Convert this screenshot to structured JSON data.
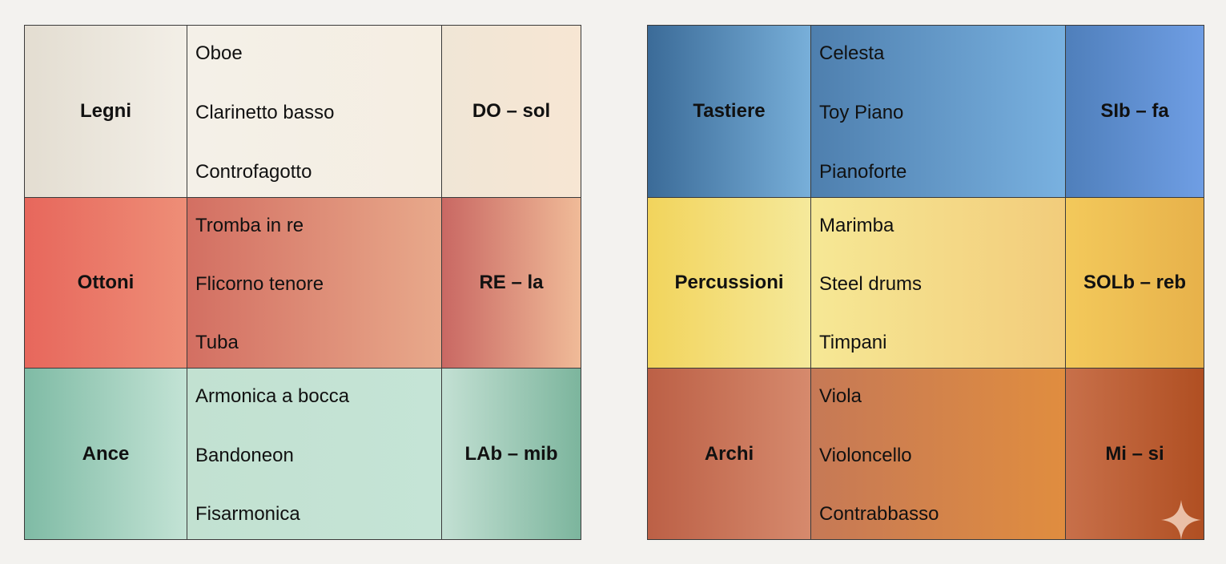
{
  "tables": [
    {
      "rows": [
        {
          "family": "Legni",
          "instruments": [
            "Oboe",
            "Clarinetto basso",
            "Controfagotto"
          ],
          "range": "DO – sol"
        },
        {
          "family": "Ottoni",
          "instruments": [
            "Tromba in re",
            "Flicorno tenore",
            "Tuba"
          ],
          "range": "RE – la"
        },
        {
          "family": "Ance",
          "instruments": [
            "Armonica a bocca",
            "Bandoneon",
            "Fisarmonica"
          ],
          "range": "LAb – mib"
        }
      ]
    },
    {
      "rows": [
        {
          "family": "Tastiere",
          "instruments": [
            "Celesta",
            "Toy Piano",
            "Pianoforte"
          ],
          "range": "SIb – fa"
        },
        {
          "family": "Percussioni",
          "instruments": [
            "Marimba",
            "Steel drums",
            "Timpani"
          ],
          "range": "SOLb – reb"
        },
        {
          "family": "Archi",
          "instruments": [
            "Viola",
            "Violoncello",
            "Contrabbasso"
          ],
          "range": "Mi – si"
        }
      ]
    }
  ],
  "icons": {
    "corner": "sparkle-icon"
  },
  "colors": {
    "legni": "#f3efe7",
    "ottoni": "#e7675c",
    "ance": "#c2e1d1",
    "tastiere": "#4e7fae",
    "percussioni": "#f6e895",
    "archi": "#d68a6d"
  }
}
